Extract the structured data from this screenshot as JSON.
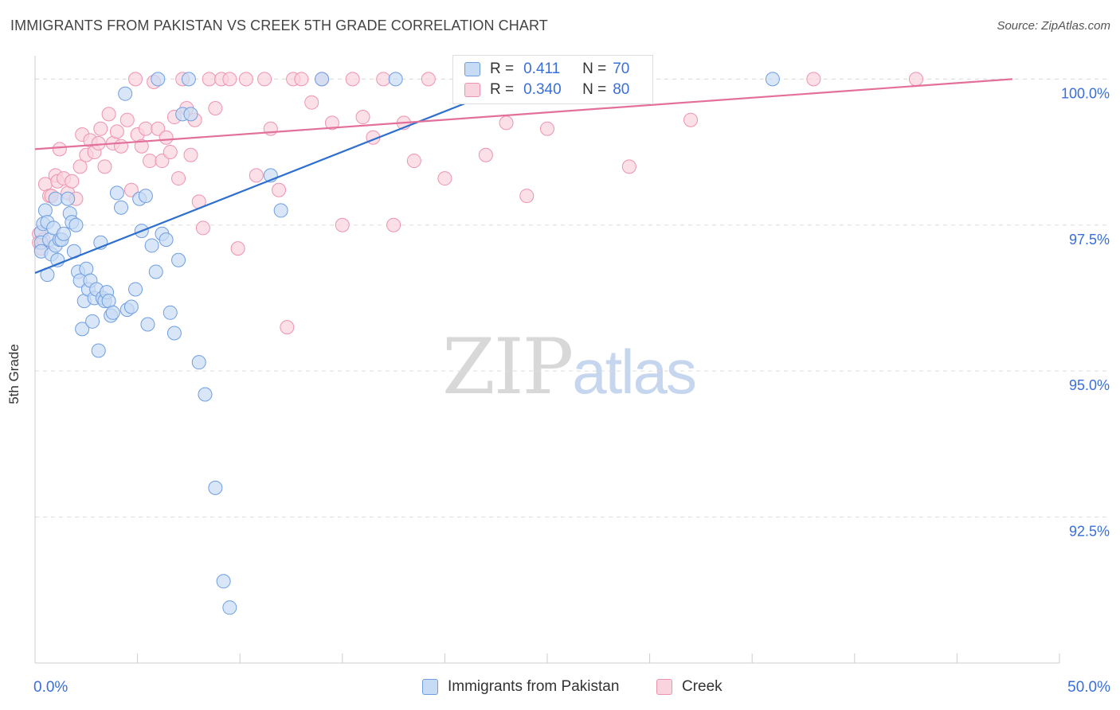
{
  "title": "IMMIGRANTS FROM PAKISTAN VS CREEK 5TH GRADE CORRELATION CHART",
  "source": "Source: ZipAtlas.com",
  "watermark": {
    "zip": "ZIP",
    "atlas": "atlas"
  },
  "legend": {
    "series1": {
      "r_label": "R =",
      "r_value": "0.411",
      "n_label": "N =",
      "n_value": "70"
    },
    "series2": {
      "r_label": "R =",
      "r_value": "0.340",
      "n_label": "N =",
      "n_value": "80"
    }
  },
  "bottom_legend": {
    "series1": "Immigrants from Pakistan",
    "series2": "Creek"
  },
  "colors": {
    "blue_fill": "#c7dbf5",
    "blue_stroke": "#6f9ee0",
    "blue_line": "#2e6fce",
    "pink_fill": "#f9d3de",
    "pink_stroke": "#ee93b0",
    "pink_line": "#e2709a",
    "tick_text": "#3a6fd8",
    "grid": "#dddddd"
  },
  "chart_data": {
    "type": "scatter",
    "title": "IMMIGRANTS FROM PAKISTAN VS CREEK 5TH GRADE CORRELATION CHART",
    "xlabel": "",
    "ylabel": "5th Grade",
    "xlim": [
      0,
      50
    ],
    "ylim": [
      90.0,
      100.4
    ],
    "x_tick_labels": [
      "0.0%",
      "50.0%"
    ],
    "y_ticks": [
      92.5,
      95.0,
      97.5,
      100.0
    ],
    "y_tick_labels": [
      "92.5%",
      "95.0%",
      "97.5%",
      "100.0%"
    ],
    "grid": true,
    "series": [
      {
        "name": "Immigrants from Pakistan",
        "color": "#6f9ee0",
        "trend": {
          "x": [
            0.0,
            24.0
          ],
          "y": [
            96.68,
            100.0
          ]
        },
        "points": [
          [
            0.3,
            97.38
          ],
          [
            0.3,
            97.2
          ],
          [
            0.3,
            97.05
          ],
          [
            0.4,
            97.52
          ],
          [
            0.5,
            97.75
          ],
          [
            0.6,
            96.65
          ],
          [
            0.6,
            97.55
          ],
          [
            0.7,
            97.25
          ],
          [
            0.8,
            97.0
          ],
          [
            0.9,
            97.45
          ],
          [
            1.0,
            97.95
          ],
          [
            1.0,
            97.15
          ],
          [
            1.1,
            96.9
          ],
          [
            1.2,
            97.25
          ],
          [
            1.3,
            97.25
          ],
          [
            1.4,
            97.35
          ],
          [
            1.6,
            97.95
          ],
          [
            1.7,
            97.7
          ],
          [
            1.8,
            97.55
          ],
          [
            1.9,
            97.05
          ],
          [
            2.0,
            97.5
          ],
          [
            2.1,
            96.7
          ],
          [
            2.2,
            96.55
          ],
          [
            2.3,
            95.72
          ],
          [
            2.4,
            96.2
          ],
          [
            2.5,
            96.75
          ],
          [
            2.6,
            96.4
          ],
          [
            2.7,
            96.55
          ],
          [
            2.8,
            95.85
          ],
          [
            2.9,
            96.25
          ],
          [
            3.0,
            96.4
          ],
          [
            3.1,
            95.35
          ],
          [
            3.2,
            97.2
          ],
          [
            3.3,
            96.25
          ],
          [
            3.4,
            96.2
          ],
          [
            3.5,
            96.35
          ],
          [
            3.6,
            96.2
          ],
          [
            3.7,
            95.95
          ],
          [
            3.8,
            96.0
          ],
          [
            4.0,
            98.05
          ],
          [
            4.2,
            97.8
          ],
          [
            4.4,
            99.75
          ],
          [
            4.5,
            96.05
          ],
          [
            4.7,
            96.1
          ],
          [
            4.9,
            96.4
          ],
          [
            5.1,
            97.95
          ],
          [
            5.2,
            97.4
          ],
          [
            5.4,
            98.0
          ],
          [
            5.5,
            95.8
          ],
          [
            5.7,
            97.15
          ],
          [
            5.9,
            96.7
          ],
          [
            6.0,
            100.0
          ],
          [
            6.2,
            97.35
          ],
          [
            6.4,
            97.25
          ],
          [
            6.6,
            96.0
          ],
          [
            6.8,
            95.65
          ],
          [
            7.0,
            96.9
          ],
          [
            7.2,
            99.4
          ],
          [
            7.5,
            100.0
          ],
          [
            7.6,
            99.4
          ],
          [
            8.0,
            95.15
          ],
          [
            8.3,
            94.6
          ],
          [
            8.8,
            93.0
          ],
          [
            9.2,
            91.4
          ],
          [
            9.5,
            90.95
          ],
          [
            11.5,
            98.35
          ],
          [
            12.0,
            97.75
          ],
          [
            14.0,
            100.0
          ],
          [
            17.6,
            100.0
          ],
          [
            36.0,
            100.0
          ]
        ]
      },
      {
        "name": "Creek",
        "color": "#ee93b0",
        "trend": {
          "x": [
            0.0,
            47.7
          ],
          "y": [
            98.8,
            100.0
          ]
        },
        "points": [
          [
            0.2,
            97.35
          ],
          [
            0.2,
            97.2
          ],
          [
            0.3,
            97.1
          ],
          [
            0.4,
            97.25
          ],
          [
            0.5,
            98.2
          ],
          [
            0.7,
            98.0
          ],
          [
            0.8,
            98.0
          ],
          [
            1.0,
            98.35
          ],
          [
            1.1,
            98.25
          ],
          [
            1.2,
            98.8
          ],
          [
            1.4,
            98.3
          ],
          [
            1.6,
            98.05
          ],
          [
            1.8,
            98.25
          ],
          [
            2.0,
            97.95
          ],
          [
            2.2,
            98.5
          ],
          [
            2.3,
            99.05
          ],
          [
            2.5,
            98.7
          ],
          [
            2.7,
            98.95
          ],
          [
            2.9,
            98.75
          ],
          [
            3.1,
            98.9
          ],
          [
            3.2,
            99.15
          ],
          [
            3.4,
            98.5
          ],
          [
            3.6,
            99.4
          ],
          [
            3.8,
            98.9
          ],
          [
            4.0,
            99.1
          ],
          [
            4.2,
            98.85
          ],
          [
            4.5,
            99.3
          ],
          [
            4.7,
            98.1
          ],
          [
            4.9,
            100.0
          ],
          [
            5.0,
            99.05
          ],
          [
            5.2,
            98.85
          ],
          [
            5.4,
            99.15
          ],
          [
            5.6,
            98.6
          ],
          [
            5.8,
            99.95
          ],
          [
            6.0,
            99.15
          ],
          [
            6.2,
            98.6
          ],
          [
            6.4,
            99.0
          ],
          [
            6.6,
            98.75
          ],
          [
            6.8,
            99.35
          ],
          [
            7.0,
            98.3
          ],
          [
            7.2,
            100.0
          ],
          [
            7.4,
            99.5
          ],
          [
            7.6,
            98.7
          ],
          [
            7.8,
            99.3
          ],
          [
            8.0,
            97.9
          ],
          [
            8.2,
            97.45
          ],
          [
            8.5,
            100.0
          ],
          [
            8.8,
            99.5
          ],
          [
            9.1,
            100.0
          ],
          [
            9.5,
            100.0
          ],
          [
            9.9,
            97.1
          ],
          [
            10.3,
            100.0
          ],
          [
            10.8,
            98.35
          ],
          [
            11.2,
            100.0
          ],
          [
            11.5,
            99.15
          ],
          [
            11.9,
            98.1
          ],
          [
            12.3,
            95.75
          ],
          [
            12.6,
            100.0
          ],
          [
            13.0,
            100.0
          ],
          [
            13.5,
            99.6
          ],
          [
            14.0,
            100.0
          ],
          [
            14.5,
            99.25
          ],
          [
            15.0,
            97.5
          ],
          [
            15.5,
            100.0
          ],
          [
            16.0,
            99.35
          ],
          [
            16.5,
            99.0
          ],
          [
            17.0,
            100.0
          ],
          [
            17.5,
            97.5
          ],
          [
            18.0,
            99.25
          ],
          [
            18.5,
            98.6
          ],
          [
            19.2,
            100.0
          ],
          [
            20.0,
            98.3
          ],
          [
            22.0,
            98.7
          ],
          [
            23.0,
            99.25
          ],
          [
            24.0,
            98.0
          ],
          [
            25.0,
            99.15
          ],
          [
            29.0,
            98.5
          ],
          [
            32.0,
            99.3
          ],
          [
            38.0,
            100.0
          ],
          [
            43.0,
            100.0
          ]
        ]
      }
    ]
  }
}
